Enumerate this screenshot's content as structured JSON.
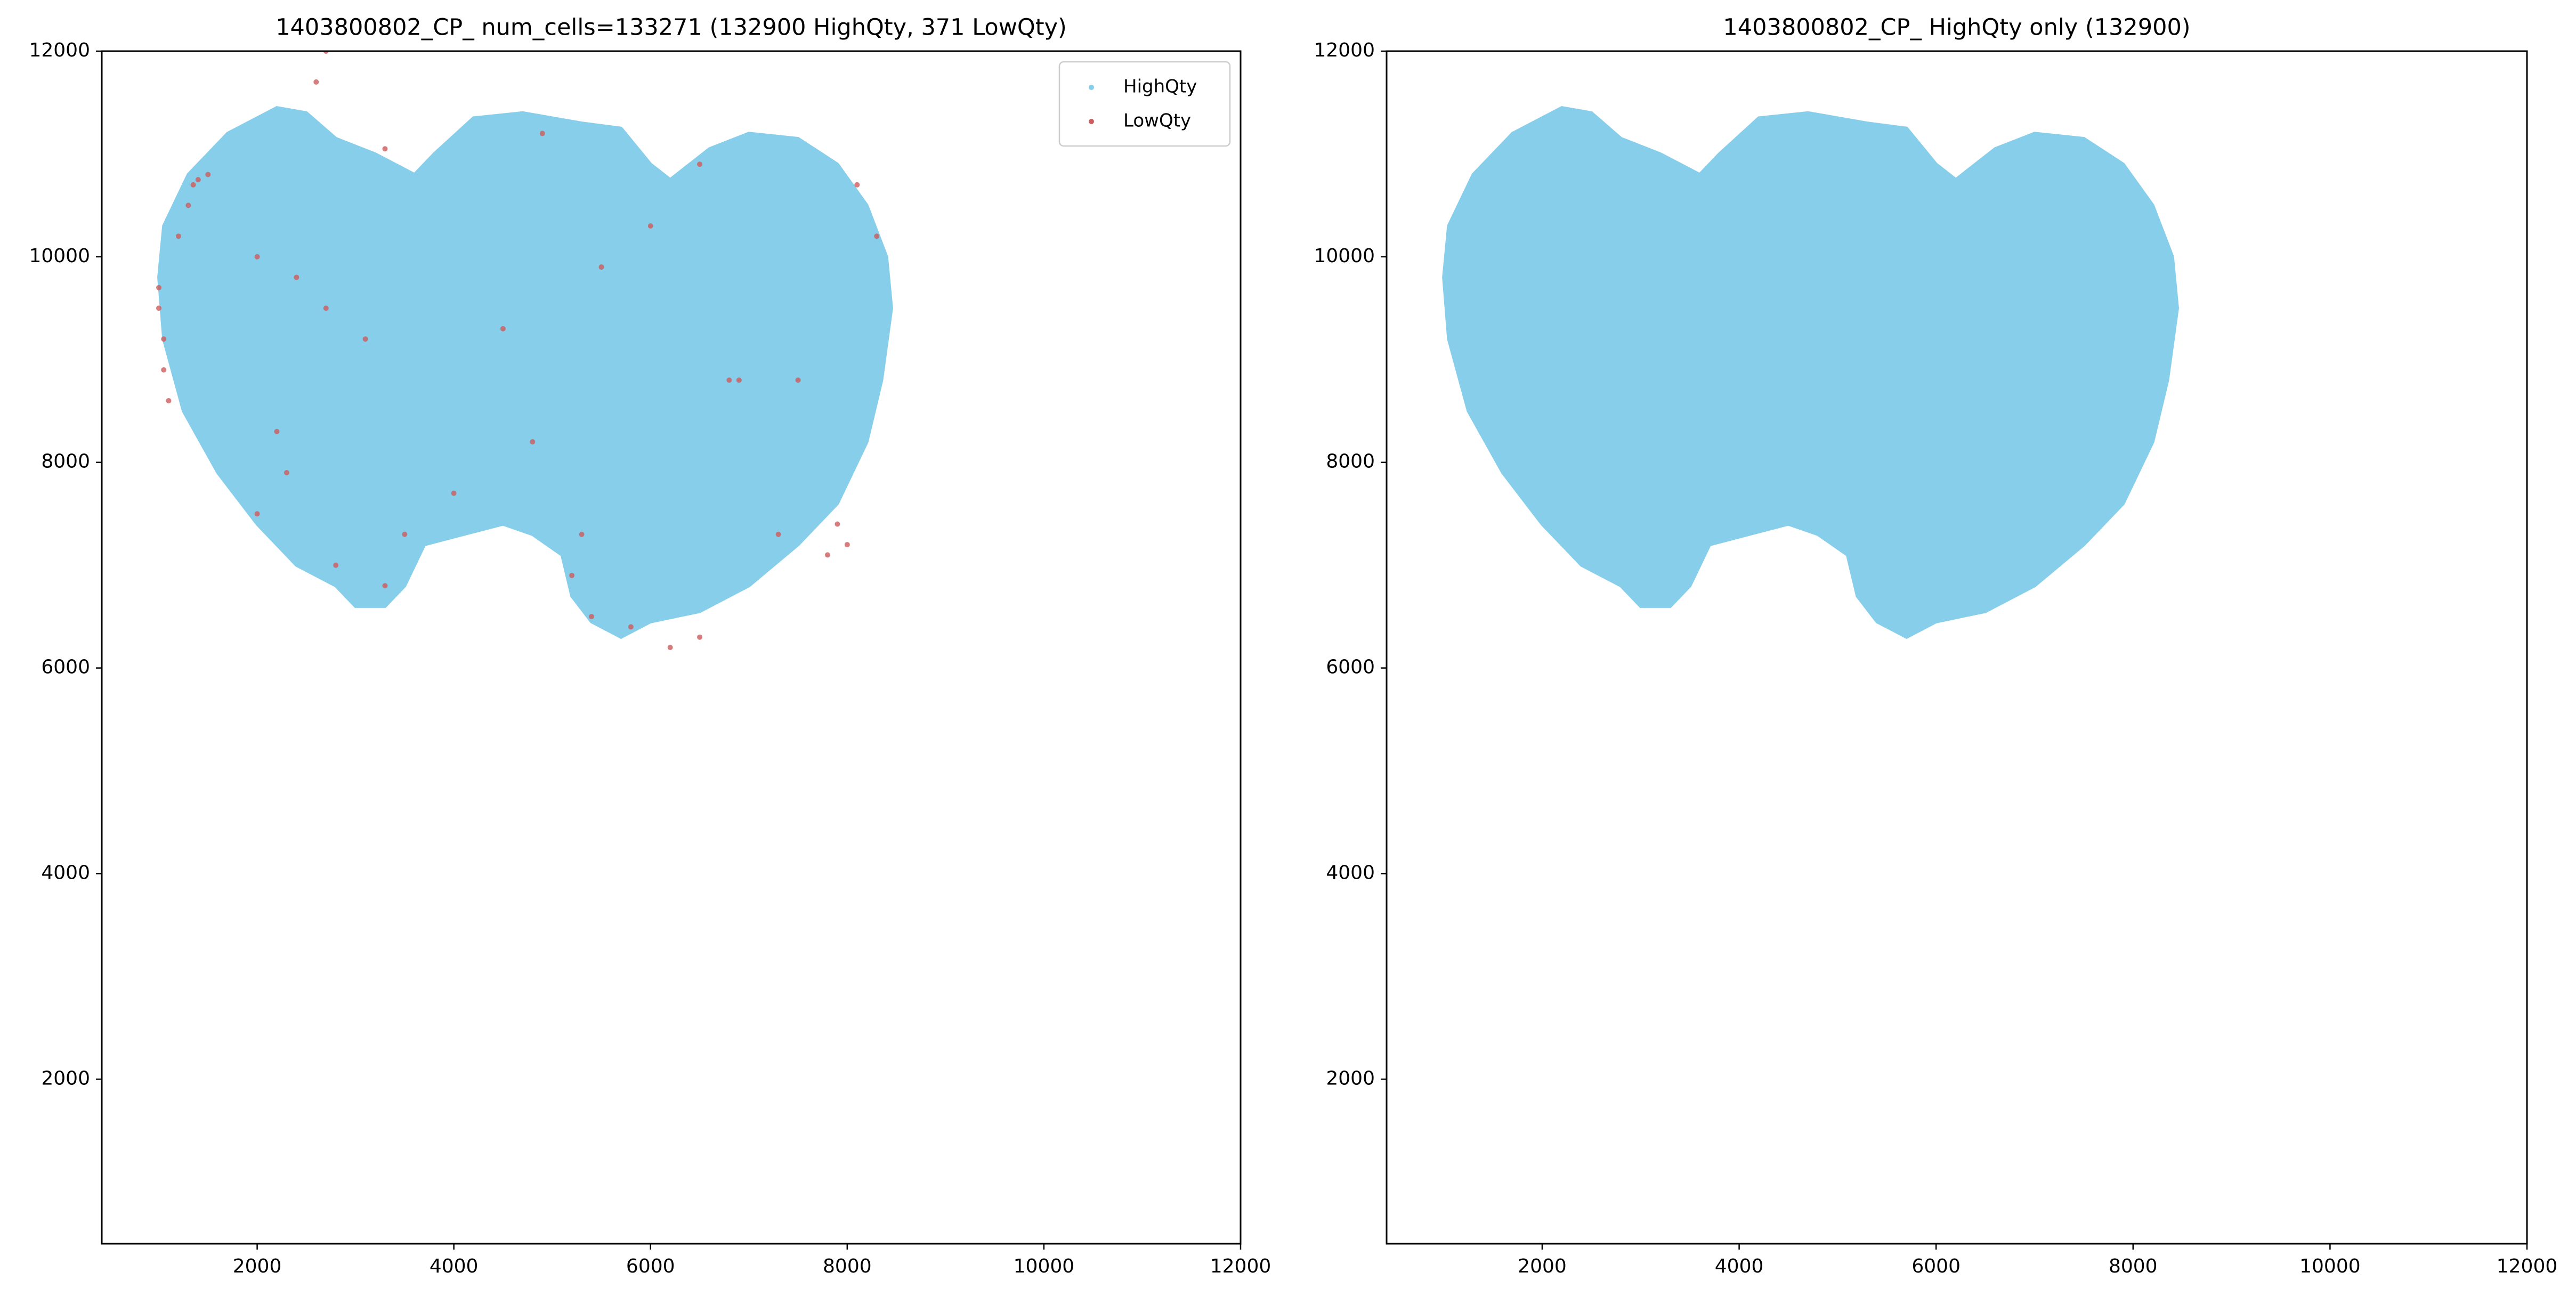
{
  "chart_data": [
    {
      "type": "scatter",
      "title": "1403800802_CP_ num_cells=133271 (132900 HighQty, 371 LowQty)",
      "xlim": [
        420,
        12000
      ],
      "ylim": [
        400,
        12000
      ],
      "xticks": [
        2000,
        4000,
        6000,
        8000,
        10000,
        12000
      ],
      "yticks": [
        2000,
        4000,
        6000,
        8000,
        10000,
        12000
      ],
      "legend": "upper right",
      "series": [
        {
          "name": "HighQty",
          "color": "#87ceeb",
          "fill": true,
          "x": [
            1050,
            1300,
            1700,
            2200,
            2500,
            2800,
            3200,
            3600,
            3800,
            4200,
            4700,
            5300,
            5700,
            6000,
            6200,
            6600,
            7000,
            7500,
            7900,
            8200,
            8400,
            8450,
            8350,
            8200,
            7900,
            7500,
            7000,
            6500,
            6000,
            5700,
            5400,
            5200,
            5100,
            4800,
            4500,
            4100,
            3700,
            3500,
            3300,
            3000,
            2800,
            2400,
            2000,
            1600,
            1250,
            1050,
            1000
          ],
          "y": [
            10300,
            10800,
            11200,
            11450,
            11400,
            11150,
            11000,
            10800,
            11000,
            11350,
            11400,
            11300,
            11250,
            10900,
            10750,
            11050,
            11200,
            11150,
            10900,
            10500,
            10000,
            9500,
            8800,
            8200,
            7600,
            7200,
            6800,
            6550,
            6450,
            6300,
            6450,
            6700,
            7100,
            7300,
            7400,
            7300,
            7200,
            6800,
            6600,
            6600,
            6800,
            7000,
            7400,
            7900,
            8500,
            9200,
            9800
          ]
        },
        {
          "name": "LowQty",
          "color": "#cd5c5c",
          "x": [
            1000,
            1000,
            1050,
            1050,
            1100,
            1300,
            1350,
            1400,
            1500,
            1200,
            2000,
            2400,
            2700,
            3100,
            2200,
            2000,
            2800,
            3300,
            3500,
            2300,
            4000,
            4800,
            5300,
            5200,
            5400,
            5800,
            6200,
            6500,
            7300,
            7800,
            8000,
            7900,
            7500,
            8300,
            8100,
            6500,
            6000,
            4900,
            2700,
            2600,
            3300,
            5500,
            6800,
            6900,
            4500
          ],
          "y": [
            9700,
            9500,
            9200,
            8900,
            8600,
            10500,
            10700,
            10750,
            10800,
            10200,
            10000,
            9800,
            9500,
            9200,
            8300,
            7500,
            7000,
            6800,
            7300,
            7900,
            7700,
            8200,
            7300,
            6900,
            6500,
            6400,
            6200,
            6300,
            7300,
            7100,
            7200,
            7400,
            8800,
            10200,
            10700,
            10900,
            10300,
            11200,
            12000,
            11700,
            11050,
            9900,
            8800,
            8800,
            9300
          ]
        }
      ]
    },
    {
      "type": "scatter",
      "title": "1403800802_CP_ HighQty only (132900)",
      "xlim": [
        420,
        12000
      ],
      "ylim": [
        400,
        12000
      ],
      "xticks": [
        2000,
        4000,
        6000,
        8000,
        10000,
        12000
      ],
      "yticks": [
        2000,
        4000,
        6000,
        8000,
        10000,
        12000
      ],
      "series": [
        {
          "color": "#87ceeb",
          "fill": true,
          "x": [
            1050,
            1300,
            1700,
            2200,
            2500,
            2800,
            3200,
            3600,
            3800,
            4200,
            4700,
            5300,
            5700,
            6000,
            6200,
            6600,
            7000,
            7500,
            7900,
            8200,
            8400,
            8450,
            8350,
            8200,
            7900,
            7500,
            7000,
            6500,
            6000,
            5700,
            5400,
            5200,
            5100,
            4800,
            4500,
            4100,
            3700,
            3500,
            3300,
            3000,
            2800,
            2400,
            2000,
            1600,
            1250,
            1050,
            1000
          ],
          "y": [
            10300,
            10800,
            11200,
            11450,
            11400,
            11150,
            11000,
            10800,
            11000,
            11350,
            11400,
            11300,
            11250,
            10900,
            10750,
            11050,
            11200,
            11150,
            10900,
            10500,
            10000,
            9500,
            8800,
            8200,
            7600,
            7200,
            6800,
            6550,
            6450,
            6300,
            6450,
            6700,
            7100,
            7300,
            7400,
            7300,
            7200,
            6800,
            6600,
            6600,
            6800,
            7000,
            7400,
            7900,
            8500,
            9200,
            9800
          ]
        }
      ]
    }
  ]
}
